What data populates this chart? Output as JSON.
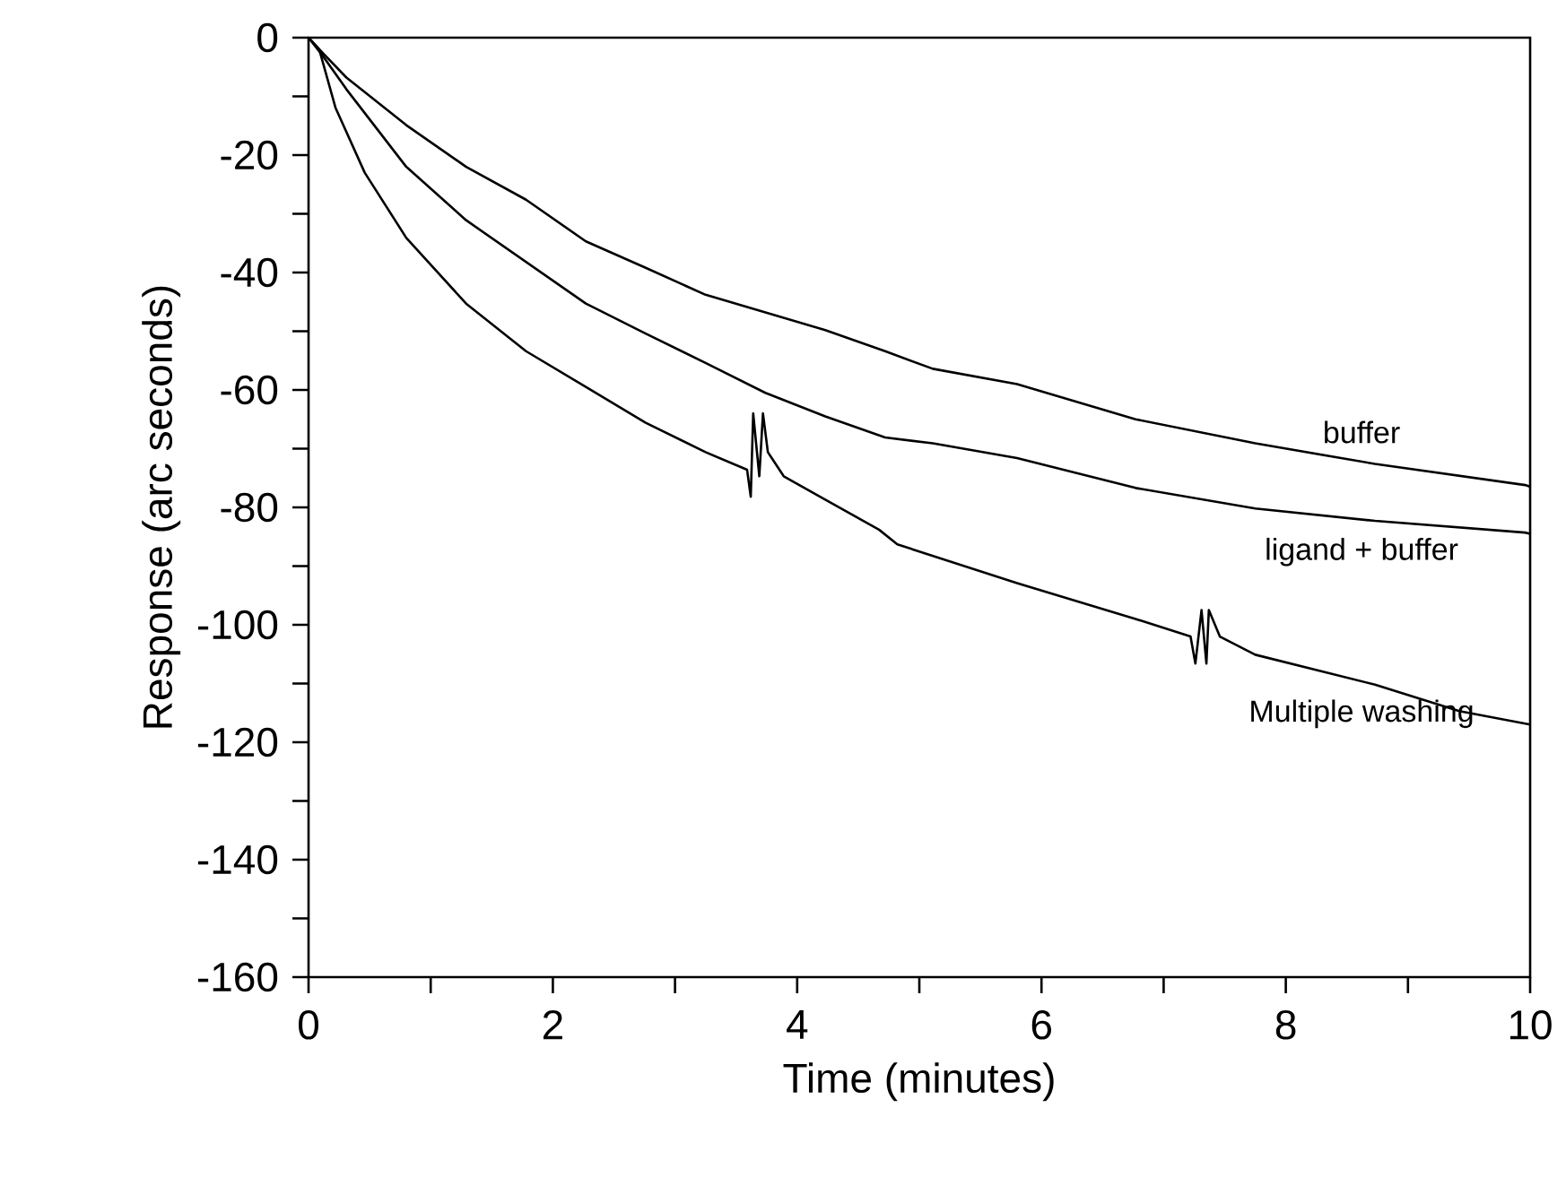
{
  "chart_data": {
    "type": "line",
    "xlabel": "Time (minutes)",
    "ylabel": "Response (arc seconds)",
    "xlim": [
      0,
      10
    ],
    "ylim": [
      -160,
      0
    ],
    "xticks": [
      0,
      {
        "value": 1,
        "label": null
      },
      2,
      {
        "value": 3,
        "label": null
      },
      4,
      {
        "value": 5,
        "label": null
      },
      6,
      {
        "value": 7,
        "label": null
      },
      8,
      {
        "value": 9,
        "label": null
      },
      10
    ],
    "yticks": [
      0,
      {
        "value": -10,
        "label": null
      },
      -20,
      {
        "value": -30,
        "label": null
      },
      -40,
      {
        "value": -50,
        "label": null
      },
      -60,
      {
        "value": -70,
        "label": null
      },
      -80,
      {
        "value": -90,
        "label": null
      },
      -100,
      {
        "value": -110,
        "label": null
      },
      -120,
      {
        "value": -130,
        "label": null
      },
      -140,
      {
        "value": -150,
        "label": null
      },
      -160
    ],
    "series": [
      {
        "name": "buffer",
        "color": "#000000",
        "x": [
          0,
          0.12,
          0.31,
          0.8,
          1.29,
          1.78,
          2.27,
          2.76,
          3.25,
          3.74,
          4.23,
          4.72,
          5.11,
          5.8,
          6.77,
          7.75,
          8.73,
          9.96,
          10
        ],
        "values": [
          0,
          -2.7,
          -6.8,
          -14.9,
          -22,
          -27.6,
          -34.7,
          -39.2,
          -43.8,
          -46.8,
          -49.8,
          -53.4,
          -56.4,
          -59,
          -65,
          -69.1,
          -72.6,
          -76.2,
          -76.5
        ]
      },
      {
        "name": "ligand + buffer",
        "color": "#000000",
        "x": [
          0,
          0.12,
          0.31,
          0.8,
          1.29,
          1.78,
          2.27,
          2.76,
          3.25,
          3.74,
          4.23,
          4.72,
          5.11,
          5.8,
          6.77,
          7.75,
          8.73,
          9.96,
          10
        ],
        "values": [
          0,
          -3.2,
          -8.8,
          -22,
          -31.1,
          -38.2,
          -45.3,
          -50.4,
          -55.4,
          -60.5,
          -64.5,
          -68.1,
          -69.1,
          -71.6,
          -76.7,
          -80.2,
          -82.3,
          -84.3,
          -84.5
        ]
      },
      {
        "name": "Multiple washing",
        "color": "#000000",
        "x": [
          0,
          0.09,
          0.22,
          0.46,
          0.8,
          1.29,
          1.78,
          2.27,
          2.76,
          3.25,
          3.59,
          3.62,
          3.64,
          3.69,
          3.72,
          3.76,
          3.89,
          4.23,
          4.67,
          4.82,
          5.8,
          6.77,
          7.22,
          7.26,
          7.31,
          7.35,
          7.37,
          7.46,
          7.75,
          8.73,
          9.42,
          10
        ],
        "values": [
          0,
          -2.2,
          -11.9,
          -23,
          -34.1,
          -45.3,
          -53.4,
          -59.5,
          -65.6,
          -70.6,
          -73.6,
          -78.2,
          -64,
          -74.7,
          -64,
          -70.6,
          -74.7,
          -78.7,
          -83.8,
          -86.3,
          -92.9,
          -99,
          -102,
          -106.6,
          -97.5,
          -106.6,
          -97.5,
          -102,
          -105.1,
          -110.2,
          -114.7,
          -117
        ]
      }
    ]
  }
}
